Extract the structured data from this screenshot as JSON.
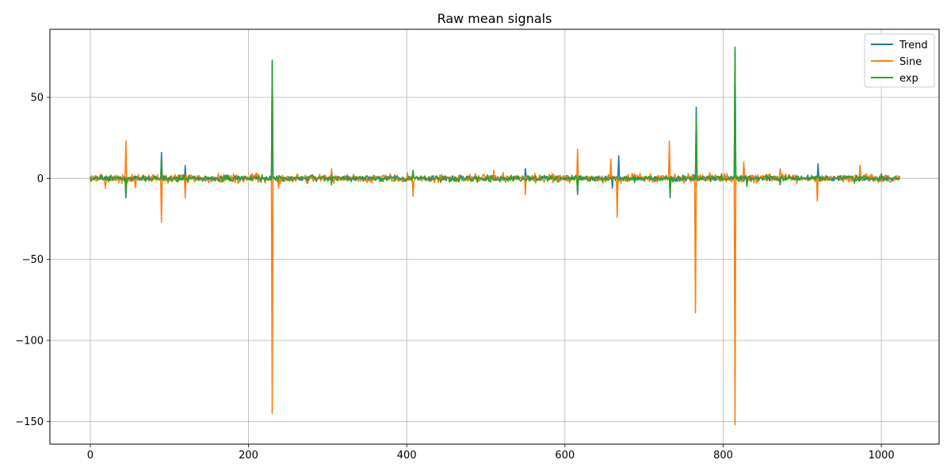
{
  "chart_data": {
    "type": "line",
    "title": "Raw mean signals",
    "xlabel": "",
    "ylabel": "",
    "xlim": [
      -51,
      1073
    ],
    "ylim": [
      -164,
      92
    ],
    "xticks": [
      0,
      200,
      400,
      600,
      800,
      1000
    ],
    "xtick_labels": [
      "0",
      "200",
      "400",
      "600",
      "800",
      "1000"
    ],
    "yticks": [
      -150,
      -100,
      -50,
      0,
      50
    ],
    "ytick_labels": [
      "−150",
      "−100",
      "−50",
      "0",
      "50"
    ],
    "grid": true,
    "legend_position": "top-right",
    "n_points": 1024,
    "series": [
      {
        "name": "Trend",
        "color": "#1f77b4",
        "noise_amplitude": 1.6,
        "spikes": [
          [
            45,
            -12
          ],
          [
            90,
            16
          ],
          [
            120,
            8
          ],
          [
            230,
            72
          ],
          [
            550,
            6
          ],
          [
            616,
            -10
          ],
          [
            660,
            -6
          ],
          [
            668,
            14
          ],
          [
            733,
            -12
          ],
          [
            766,
            44
          ],
          [
            815,
            79
          ],
          [
            920,
            9
          ]
        ]
      },
      {
        "name": "Sine",
        "color": "#ff7f0e",
        "noise_amplitude": 2.6,
        "spikes": [
          [
            19,
            -6
          ],
          [
            45,
            23
          ],
          [
            57,
            -6
          ],
          [
            90,
            -27
          ],
          [
            120,
            -12
          ],
          [
            230,
            -145
          ],
          [
            238,
            -6
          ],
          [
            305,
            6
          ],
          [
            408,
            -11
          ],
          [
            510,
            5
          ],
          [
            550,
            -10
          ],
          [
            616,
            18
          ],
          [
            658,
            12
          ],
          [
            666,
            -24
          ],
          [
            732,
            23
          ],
          [
            765,
            -83
          ],
          [
            815,
            -152
          ],
          [
            826,
            10
          ],
          [
            872,
            6
          ],
          [
            919,
            -14
          ],
          [
            973,
            8
          ]
        ]
      },
      {
        "name": "exp",
        "color": "#2ca02c",
        "noise_amplitude": 1.8,
        "spikes": [
          [
            45,
            -10
          ],
          [
            90,
            12
          ],
          [
            230,
            73
          ],
          [
            305,
            -4
          ],
          [
            408,
            5
          ],
          [
            616,
            -9
          ],
          [
            733,
            -10
          ],
          [
            766,
            40
          ],
          [
            815,
            81
          ],
          [
            830,
            -5
          ],
          [
            872,
            -4
          ],
          [
            1000,
            3
          ]
        ]
      }
    ]
  }
}
